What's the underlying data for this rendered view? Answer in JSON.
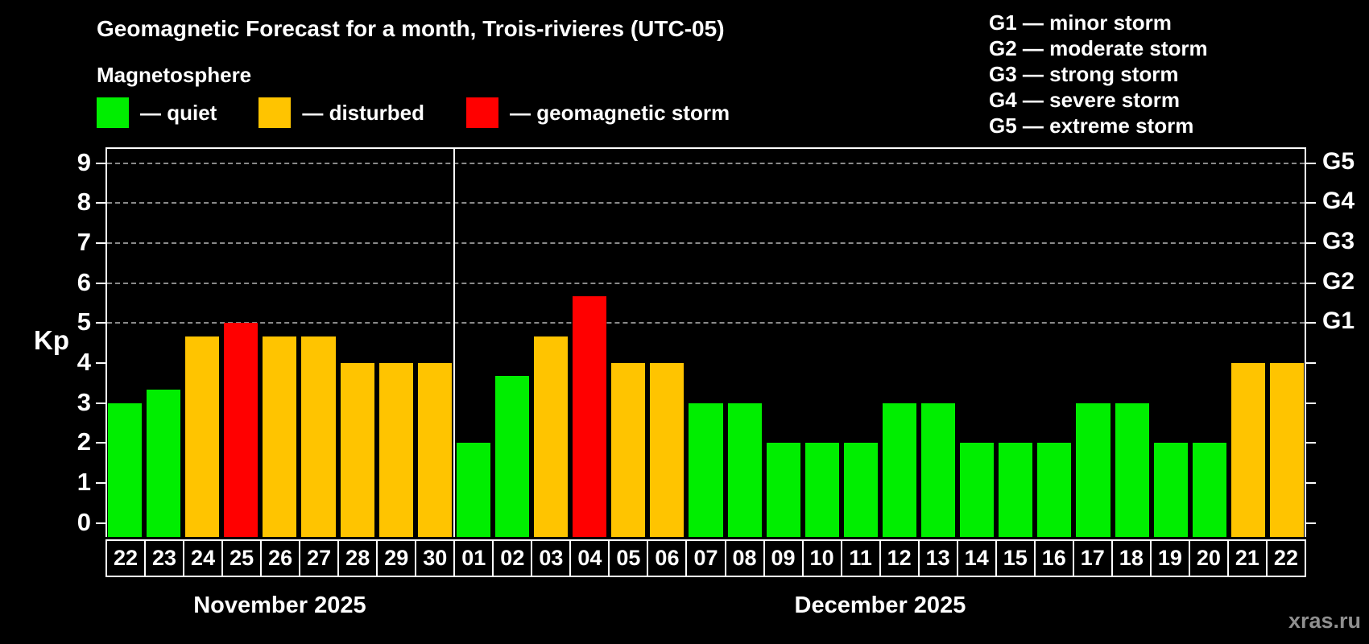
{
  "title": "Geomagnetic Forecast for a month, Trois-rivieres (UTC-05)",
  "subtitle": "Magnetosphere",
  "kp_legend": {
    "quiet": "— quiet",
    "disturbed": "— disturbed",
    "storm": "— geomagnetic storm"
  },
  "g_legend": {
    "items": [
      {
        "label": "G1 — minor storm"
      },
      {
        "label": "G2 — moderate storm"
      },
      {
        "label": "G3 — strong storm"
      },
      {
        "label": "G4 — severe storm"
      },
      {
        "label": "G5 — extreme storm"
      }
    ]
  },
  "watermark": "xras.ru",
  "colors": {
    "background": "#000000",
    "quiet": "#00ee00",
    "disturbed": "#ffc400",
    "storm": "#ff0000",
    "axis": "#ffffff",
    "grid": "#8a8a8a",
    "watermark": "#8f8f8f"
  },
  "chart_data": {
    "type": "bar",
    "title": "Geomagnetic Forecast for a month, Trois-rivieres (UTC-05)",
    "ylabel": "Kp",
    "ylim": [
      -0.35,
      9.4
    ],
    "yticks": [
      0,
      1,
      2,
      3,
      4,
      5,
      6,
      7,
      8,
      9
    ],
    "gridline_kp_levels": [
      5,
      6,
      7,
      8,
      9
    ],
    "grid": "horizontal dashed lines at storm levels Kp 5-9 only",
    "legend_position": "top-left",
    "right_axis": [
      {
        "kp": 5,
        "label": "G1"
      },
      {
        "kp": 6,
        "label": "G2"
      },
      {
        "kp": 7,
        "label": "G3"
      },
      {
        "kp": 8,
        "label": "G4"
      },
      {
        "kp": 9,
        "label": "G5"
      }
    ],
    "months": [
      {
        "label": "November 2025",
        "days": [
          {
            "day": "22",
            "kp": 3.0,
            "status": "quiet"
          },
          {
            "day": "23",
            "kp": 3.33,
            "status": "quiet"
          },
          {
            "day": "24",
            "kp": 4.67,
            "status": "disturbed"
          },
          {
            "day": "25",
            "kp": 5.0,
            "status": "storm"
          },
          {
            "day": "26",
            "kp": 4.67,
            "status": "disturbed"
          },
          {
            "day": "27",
            "kp": 4.67,
            "status": "disturbed"
          },
          {
            "day": "28",
            "kp": 4.0,
            "status": "disturbed"
          },
          {
            "day": "29",
            "kp": 4.0,
            "status": "disturbed"
          },
          {
            "day": "30",
            "kp": 4.0,
            "status": "disturbed"
          }
        ]
      },
      {
        "label": "December 2025",
        "days": [
          {
            "day": "01",
            "kp": 2.0,
            "status": "quiet"
          },
          {
            "day": "02",
            "kp": 3.67,
            "status": "quiet"
          },
          {
            "day": "03",
            "kp": 4.67,
            "status": "disturbed"
          },
          {
            "day": "04",
            "kp": 5.67,
            "status": "storm"
          },
          {
            "day": "05",
            "kp": 4.0,
            "status": "disturbed"
          },
          {
            "day": "06",
            "kp": 4.0,
            "status": "disturbed"
          },
          {
            "day": "07",
            "kp": 3.0,
            "status": "quiet"
          },
          {
            "day": "08",
            "kp": 3.0,
            "status": "quiet"
          },
          {
            "day": "09",
            "kp": 2.0,
            "status": "quiet"
          },
          {
            "day": "10",
            "kp": 2.0,
            "status": "quiet"
          },
          {
            "day": "11",
            "kp": 2.0,
            "status": "quiet"
          },
          {
            "day": "12",
            "kp": 3.0,
            "status": "quiet"
          },
          {
            "day": "13",
            "kp": 3.0,
            "status": "quiet"
          },
          {
            "day": "14",
            "kp": 2.0,
            "status": "quiet"
          },
          {
            "day": "15",
            "kp": 2.0,
            "status": "quiet"
          },
          {
            "day": "16",
            "kp": 2.0,
            "status": "quiet"
          },
          {
            "day": "17",
            "kp": 3.0,
            "status": "quiet"
          },
          {
            "day": "18",
            "kp": 3.0,
            "status": "quiet"
          },
          {
            "day": "19",
            "kp": 2.0,
            "status": "quiet"
          },
          {
            "day": "20",
            "kp": 2.0,
            "status": "quiet"
          },
          {
            "day": "21",
            "kp": 4.0,
            "status": "disturbed"
          },
          {
            "day": "22",
            "kp": 4.0,
            "status": "disturbed"
          }
        ]
      }
    ]
  }
}
